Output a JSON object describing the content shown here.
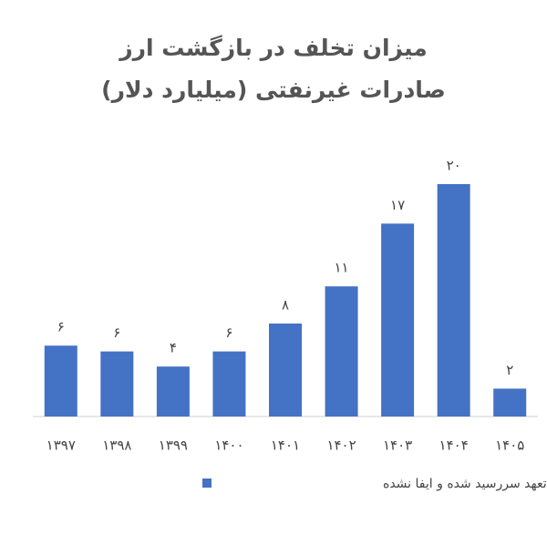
{
  "chart_data": {
    "type": "bar",
    "title": "میزان تخلف در بازگشت ارز صادرات غیرنفتی (میلیارد دلار)",
    "categories": [
      "۱۳۹۷",
      "۱۳۹۸",
      "۱۳۹۹",
      "۱۴۰۰",
      "۱۴۰۱",
      "۱۴۰۲",
      "۱۴۰۳",
      "۱۴۰۴",
      "۱۴۰۵"
    ],
    "series": [
      {
        "name": "تعهد سررسید شده و ایفا نشده",
        "color": "#4472c4",
        "values": [
          6.1,
          5.6,
          4.3,
          5.6,
          8,
          11.2,
          16.6,
          20,
          2.4
        ],
        "value_labels": [
          "۶",
          "۶",
          "۴",
          "۶",
          "۸",
          "۱۱",
          "۱۷",
          "۲۰",
          "۲"
        ]
      }
    ],
    "legend": "bottom"
  }
}
